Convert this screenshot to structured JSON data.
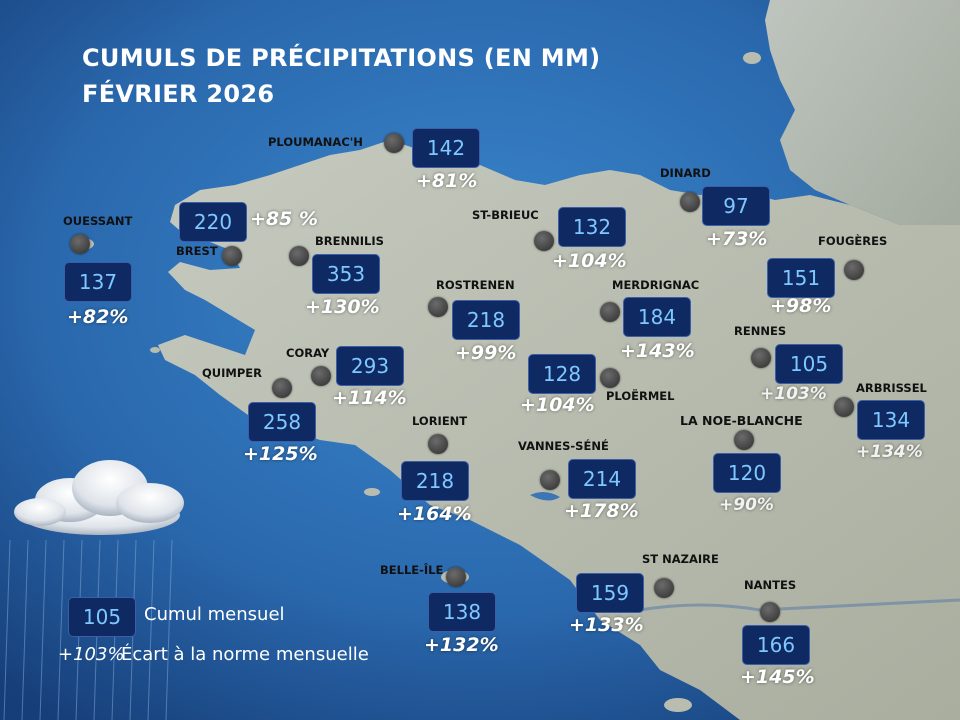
{
  "title": {
    "line1": "CUMULS DE PRÉCIPITATIONS (EN MM)",
    "line2": "FÉVRIER 2026"
  },
  "stations": [
    {
      "id": "ploumanach",
      "name": "PLOUMANAC'H",
      "cumul": "142",
      "ecart": "+81%"
    },
    {
      "id": "dinard",
      "name": "DINARD",
      "cumul": "97",
      "ecart": "+73%"
    },
    {
      "id": "ouessant",
      "name": "OUESSANT",
      "cumul": "137",
      "ecart": "+82%"
    },
    {
      "id": "brest",
      "name": "BREST",
      "cumul": "220",
      "ecart": "+85 %"
    },
    {
      "id": "brennilis",
      "name": "BRENNILIS",
      "cumul": "353",
      "ecart": "+130%"
    },
    {
      "id": "st-brieuc",
      "name": "ST-BRIEUC",
      "cumul": "132",
      "ecart": "+104%"
    },
    {
      "id": "fougeres",
      "name": "FOUGÈRES",
      "cumul": "151",
      "ecart": "+98%"
    },
    {
      "id": "rostrenen",
      "name": "ROSTRENEN",
      "cumul": "218",
      "ecart": "+99%"
    },
    {
      "id": "merdrignac",
      "name": "MERDRIGNAC",
      "cumul": "184",
      "ecart": "+143%"
    },
    {
      "id": "rennes",
      "name": "RENNES",
      "cumul": "105",
      "ecart": "+103%"
    },
    {
      "id": "coray",
      "name": "CORAY",
      "cumul": "293",
      "ecart": "+114%"
    },
    {
      "id": "quimper",
      "name": "QUIMPER",
      "cumul": "258",
      "ecart": "+125%"
    },
    {
      "id": "ploermel",
      "name": "PLOËRMEL",
      "cumul": "128",
      "ecart": "+104%"
    },
    {
      "id": "arbrissel",
      "name": "ARBRISSEL",
      "cumul": "134",
      "ecart": "+134%"
    },
    {
      "id": "noe-blanche",
      "name": "LA NOE-BLANCHE",
      "cumul": "120",
      "ecart": "+90%"
    },
    {
      "id": "lorient",
      "name": "LORIENT",
      "cumul": "218",
      "ecart": "+164%"
    },
    {
      "id": "vannes-sene",
      "name": "VANNES-SÉNÉ",
      "cumul": "214",
      "ecart": "+178%"
    },
    {
      "id": "belle-ile",
      "name": "BELLE-ÎLE",
      "cumul": "138",
      "ecart": "+132%"
    },
    {
      "id": "st-nazaire",
      "name": "ST NAZAIRE",
      "cumul": "159",
      "ecart": "+133%"
    },
    {
      "id": "nantes",
      "name": "NANTES",
      "cumul": "166",
      "ecart": "+145%"
    }
  ],
  "legend": {
    "sample_value": "105",
    "cumul_label": "Cumul mensuel",
    "sample_ecart": "+103%",
    "ecart_label": "Écart à la norme mensuelle"
  },
  "colors": {
    "sea": "#2a6db2",
    "land": "#b8bdb0",
    "box_fill": "#0f2a63",
    "box_text": "#7fc8ff"
  }
}
